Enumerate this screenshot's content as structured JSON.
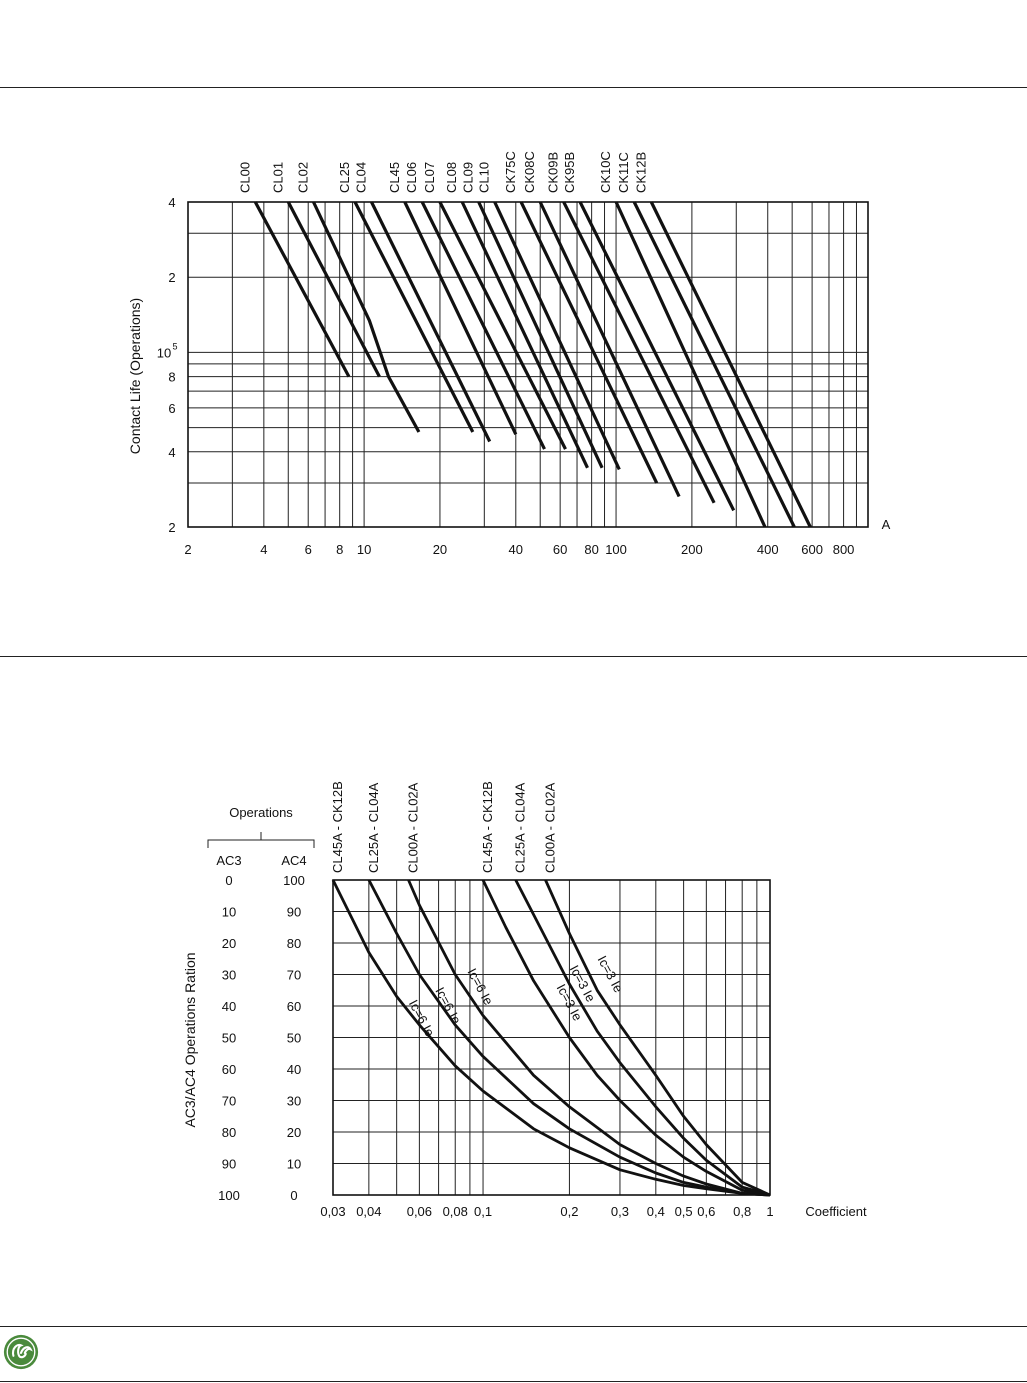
{
  "chart_data": [
    {
      "type": "line",
      "xscale": "log",
      "yscale": "log",
      "xlim": [
        2,
        1000
      ],
      "ylim": [
        20000,
        400000
      ],
      "xlabel": "A",
      "ylabel": "Contact Life (Operations)",
      "x_ticks": [
        {
          "v": 2,
          "t": "2"
        },
        {
          "v": 4,
          "t": "4"
        },
        {
          "v": 6,
          "t": "6"
        },
        {
          "v": 8,
          "t": "8"
        },
        {
          "v": 10,
          "t": "10"
        },
        {
          "v": 20,
          "t": "20"
        },
        {
          "v": 40,
          "t": "40"
        },
        {
          "v": 60,
          "t": "60"
        },
        {
          "v": 80,
          "t": "80"
        },
        {
          "v": 100,
          "t": "100"
        },
        {
          "v": 200,
          "t": "200"
        },
        {
          "v": 400,
          "t": "400"
        },
        {
          "v": 600,
          "t": "600"
        },
        {
          "v": 800,
          "t": "800"
        }
      ],
      "y_ticks": [
        {
          "v": 400000,
          "t": "4"
        },
        {
          "v": 200000,
          "t": "2"
        },
        {
          "v": 100000,
          "t": "10",
          "sup": "5"
        },
        {
          "v": 80000,
          "t": "8"
        },
        {
          "v": 60000,
          "t": "6"
        },
        {
          "v": 40000,
          "t": "4"
        },
        {
          "v": 20000,
          "t": "2"
        }
      ],
      "series": [
        {
          "name": "CL00",
          "points": [
            [
              3.7,
              400000
            ],
            [
              8.7,
              80000
            ]
          ]
        },
        {
          "name": "CL01",
          "points": [
            [
              5.0,
              400000
            ],
            [
              11.5,
              80000
            ]
          ]
        },
        {
          "name": "CL02",
          "points": [
            [
              6.3,
              400000
            ],
            [
              10.5,
              134000
            ],
            [
              12.5,
              80000
            ],
            [
              16.5,
              48000
            ]
          ]
        },
        {
          "name": "CL25",
          "points": [
            [
              9.2,
              400000
            ],
            [
              27.0,
              48000
            ]
          ]
        },
        {
          "name": "CL04",
          "points": [
            [
              10.7,
              400000
            ],
            [
              31.5,
              44000
            ]
          ]
        },
        {
          "name": "CL45",
          "points": [
            [
              14.5,
              400000
            ],
            [
              40.0,
              47000
            ]
          ]
        },
        {
          "name": "CL06",
          "points": [
            [
              17.0,
              400000
            ],
            [
              52.0,
              41000
            ]
          ]
        },
        {
          "name": "CL07",
          "points": [
            [
              20.0,
              400000
            ],
            [
              63.0,
              41000
            ]
          ]
        },
        {
          "name": "CL08",
          "points": [
            [
              24.5,
              400000
            ],
            [
              77.0,
              34500
            ]
          ]
        },
        {
          "name": "CL09",
          "points": [
            [
              28.5,
              400000
            ],
            [
              88.0,
              34500
            ]
          ]
        },
        {
          "name": "CL10",
          "points": [
            [
              33.0,
              400000
            ],
            [
              103.0,
              34000
            ]
          ]
        },
        {
          "name": "CK75C",
          "points": [
            [
              42.0,
              400000
            ],
            [
              145.0,
              30000
            ]
          ]
        },
        {
          "name": "CK08C",
          "points": [
            [
              50.0,
              400000
            ],
            [
              178.0,
              26500
            ]
          ]
        },
        {
          "name": "CK09B",
          "points": [
            [
              62.0,
              400000
            ],
            [
              245.0,
              25000
            ]
          ]
        },
        {
          "name": "CK95B",
          "points": [
            [
              72.0,
              400000
            ],
            [
              293.0,
              23300
            ]
          ]
        },
        {
          "name": "CK10C",
          "points": [
            [
              100.0,
              400000
            ],
            [
              390.0,
              20000
            ]
          ]
        },
        {
          "name": "CK11C",
          "points": [
            [
              118.0,
              400000
            ],
            [
              510.0,
              20000
            ]
          ]
        },
        {
          "name": "CK12B",
          "points": [
            [
              138.0,
              400000
            ],
            [
              590.0,
              20000
            ]
          ]
        }
      ]
    },
    {
      "type": "line",
      "xscale": "log",
      "xlim": [
        0.03,
        1
      ],
      "ylim": [
        0,
        100
      ],
      "xlabel": "Coefficient",
      "ylabel": "AC3/AC4 Operations Ration",
      "operations_label": "Operations",
      "ac3_label": "AC3",
      "ac4_label": "AC4",
      "x_ticks": [
        {
          "v": 0.03,
          "t": "0,03"
        },
        {
          "v": 0.04,
          "t": "0,04"
        },
        {
          "v": 0.06,
          "t": "0,06"
        },
        {
          "v": 0.08,
          "t": "0,08"
        },
        {
          "v": 0.1,
          "t": "0,1"
        },
        {
          "v": 0.2,
          "t": "0,2"
        },
        {
          "v": 0.3,
          "t": "0,3"
        },
        {
          "v": 0.4,
          "t": "0,4"
        },
        {
          "v": 0.5,
          "t": "0,5"
        },
        {
          "v": 0.6,
          "t": "0,6"
        },
        {
          "v": 0.8,
          "t": "0,8"
        },
        {
          "v": 1,
          "t": "1"
        }
      ],
      "y_rows": [
        {
          "ac3": "0",
          "ac4": "100"
        },
        {
          "ac3": "10",
          "ac4": "90"
        },
        {
          "ac3": "20",
          "ac4": "80"
        },
        {
          "ac3": "30",
          "ac4": "70"
        },
        {
          "ac3": "40",
          "ac4": "60"
        },
        {
          "ac3": "50",
          "ac4": "50"
        },
        {
          "ac3": "60",
          "ac4": "40"
        },
        {
          "ac3": "70",
          "ac4": "30"
        },
        {
          "ac3": "80",
          "ac4": "20"
        },
        {
          "ac3": "90",
          "ac4": "10"
        },
        {
          "ac3": "100",
          "ac4": "0"
        }
      ],
      "top_labels": [
        {
          "text": "CL45A - CK12B",
          "at": 0.03
        },
        {
          "text": "CL25A - CL04A",
          "at": 0.04
        },
        {
          "text": "CL00A - CL02A",
          "at": 0.055
        },
        {
          "text": "CL45A - CK12B",
          "at": 0.1
        },
        {
          "text": "CL25A - CL04A",
          "at": 0.13
        },
        {
          "text": "CL00A - CL02A",
          "at": 0.165
        }
      ],
      "series": [
        {
          "x": [
            0.03,
            0.034,
            0.04,
            0.05,
            0.06,
            0.08,
            0.1,
            0.15,
            0.2,
            0.3,
            0.4,
            0.5,
            0.6,
            0.8,
            1.0
          ],
          "y": [
            0,
            10,
            23,
            37,
            46,
            59,
            67,
            79,
            85,
            92,
            95,
            97,
            98,
            99.5,
            100
          ]
        },
        {
          "x": [
            0.04,
            0.05,
            0.06,
            0.08,
            0.1,
            0.15,
            0.2,
            0.3,
            0.4,
            0.5,
            0.6,
            0.8,
            1.0
          ],
          "y": [
            0,
            17,
            30,
            46,
            56,
            71,
            79,
            88,
            93,
            96,
            97.5,
            99.5,
            100
          ]
        },
        {
          "x": [
            0.055,
            0.06,
            0.08,
            0.1,
            0.15,
            0.2,
            0.3,
            0.4,
            0.5,
            0.6,
            0.8,
            1.0
          ],
          "y": [
            0,
            8,
            30,
            43,
            62,
            72,
            84,
            90,
            94,
            96.5,
            99.5,
            100
          ]
        },
        {
          "x": [
            0.1,
            0.12,
            0.15,
            0.2,
            0.25,
            0.3,
            0.4,
            0.5,
            0.6,
            0.8,
            1.0
          ],
          "y": [
            0,
            15,
            32,
            50,
            62,
            70,
            81,
            88,
            92.5,
            98.5,
            100
          ]
        },
        {
          "x": [
            0.13,
            0.15,
            0.2,
            0.25,
            0.3,
            0.4,
            0.5,
            0.6,
            0.8,
            1.0
          ],
          "y": [
            0,
            11,
            33,
            48,
            58,
            72,
            82,
            89,
            97.5,
            100
          ]
        },
        {
          "x": [
            0.165,
            0.2,
            0.25,
            0.3,
            0.4,
            0.5,
            0.6,
            0.8,
            1.0
          ],
          "y": [
            0,
            17,
            35,
            46,
            62,
            75,
            84,
            96,
            100
          ]
        }
      ],
      "curve_labels": [
        {
          "text": "Ic=6 Ie",
          "x": 0.055,
          "y": 39
        },
        {
          "text": "Ic=6 Ie",
          "x": 0.068,
          "y": 35
        },
        {
          "text": "Ic=6 Ie",
          "x": 0.088,
          "y": 29
        },
        {
          "text": "Ic=3 Ie",
          "x": 0.18,
          "y": 34
        },
        {
          "text": "Ic=3 Ie",
          "x": 0.2,
          "y": 28
        },
        {
          "text": "Ic=3 Ie",
          "x": 0.25,
          "y": 25
        }
      ]
    }
  ]
}
